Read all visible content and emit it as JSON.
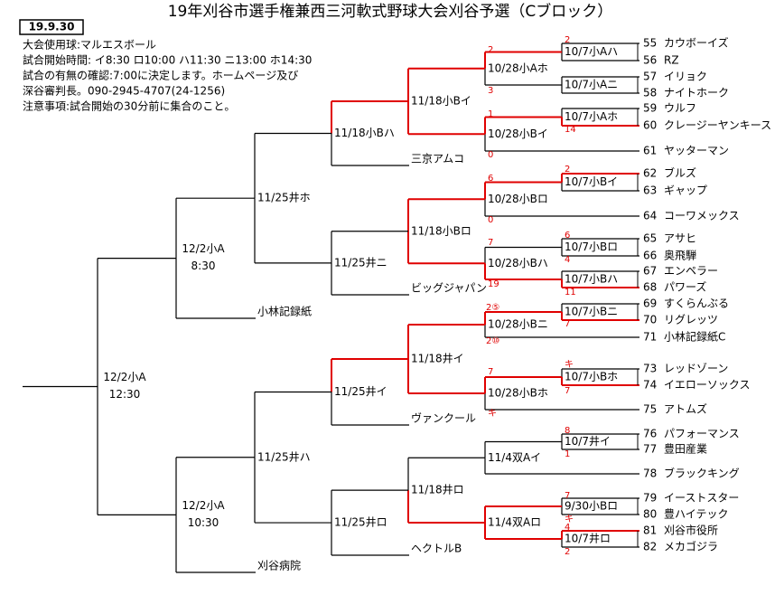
{
  "header": {
    "title": "19年刈谷市選手権兼西三河軟式野球大会刈谷予選（Cブロック）",
    "date": "19.9.30"
  },
  "info": [
    "大会使用球:マルエスボール",
    "試合開始時間: イ8:30 ロ10:00 ハ11:30 ニ13:00 ホ14:30",
    "試合の有無の確認:7:00に決定します。ホームページ及び",
    "深谷審判長。090-2945-4707(24-1256)",
    "注意事項:試合開始の30分前に集合のこと。"
  ],
  "teams": [
    {
      "no": "55",
      "name": "カウボーイズ"
    },
    {
      "no": "56",
      "name": "RZ"
    },
    {
      "no": "57",
      "name": "イリョク"
    },
    {
      "no": "58",
      "name": "ナイトホーク"
    },
    {
      "no": "59",
      "name": "ウルフ"
    },
    {
      "no": "60",
      "name": "クレージーヤンキース"
    },
    {
      "no": "61",
      "name": "ヤッターマン"
    },
    {
      "no": "62",
      "name": "ブルズ"
    },
    {
      "no": "63",
      "name": "ギャップ"
    },
    {
      "no": "64",
      "name": "コーワメックス"
    },
    {
      "no": "65",
      "name": "アサヒ"
    },
    {
      "no": "66",
      "name": "奥飛騨"
    },
    {
      "no": "67",
      "name": "エンペラー"
    },
    {
      "no": "68",
      "name": "パワーズ"
    },
    {
      "no": "69",
      "name": "すくらんぶる"
    },
    {
      "no": "70",
      "name": "リグレッツ"
    },
    {
      "no": "71",
      "name": "小林記録紙C"
    },
    {
      "no": "73",
      "name": "レッドゾーン"
    },
    {
      "no": "74",
      "name": "イエローソックス"
    },
    {
      "no": "75",
      "name": "アトムズ"
    },
    {
      "no": "76",
      "name": "パフォーマンス"
    },
    {
      "no": "77",
      "name": "豊田産業"
    },
    {
      "no": "78",
      "name": "ブラックキング"
    },
    {
      "no": "79",
      "name": "イーストスター"
    },
    {
      "no": "80",
      "name": "豊ハイテック"
    },
    {
      "no": "81",
      "name": "刈谷市役所"
    },
    {
      "no": "82",
      "name": "メカゴジラ"
    }
  ],
  "other_teams": [
    "三京アムコ",
    "ビッグジャパン",
    "小林記録紙",
    "ヴァンクール",
    "ヘクトルB",
    "刈谷病院"
  ],
  "matches": [
    {
      "label": "10/7小Aハ"
    },
    {
      "label": "10/7小Aニ"
    },
    {
      "label": "10/28小Aホ"
    },
    {
      "label": "10/7小Aホ"
    },
    {
      "label": "10/28小Bイ"
    },
    {
      "label": "11/18小Bイ"
    },
    {
      "label": "11/18小Bハ"
    },
    {
      "label": "10/7小Bイ"
    },
    {
      "label": "10/28小Bロ"
    },
    {
      "label": "10/7小Bロ"
    },
    {
      "label": "10/7小Bハ"
    },
    {
      "label": "10/28小Bハ"
    },
    {
      "label": "11/18小Bロ"
    },
    {
      "label": "11/25井ニ"
    },
    {
      "label": "11/25井ホ"
    },
    {
      "label": "12/2小A",
      "time": "8:30"
    },
    {
      "label": "10/7小Bニ"
    },
    {
      "label": "10/28小Bニ"
    },
    {
      "label": "10/7小Bホ"
    },
    {
      "label": "10/28小Bホ"
    },
    {
      "label": "11/18井イ"
    },
    {
      "label": "11/25井イ"
    },
    {
      "label": "10/7井イ"
    },
    {
      "label": "11/4双Aイ"
    },
    {
      "label": "9/30小Bロ"
    },
    {
      "label": "10/7井ロ"
    },
    {
      "label": "11/4双Aロ"
    },
    {
      "label": "11/18井ロ"
    },
    {
      "label": "11/25井ロ"
    },
    {
      "label": "11/25井ハ"
    },
    {
      "label": "12/2小A",
      "time": "10:30"
    },
    {
      "label": "12/2小A",
      "time": "12:30"
    }
  ],
  "scores": [
    "2",
    "2",
    "3",
    "1",
    "14",
    "0",
    "2",
    "6",
    "0",
    "6",
    "4",
    "7",
    "19",
    "11",
    "2⑤",
    "2⑩",
    "7",
    "7",
    "キ",
    "7",
    "キ",
    "8",
    "1",
    "7",
    "キ",
    "4",
    "2"
  ]
}
